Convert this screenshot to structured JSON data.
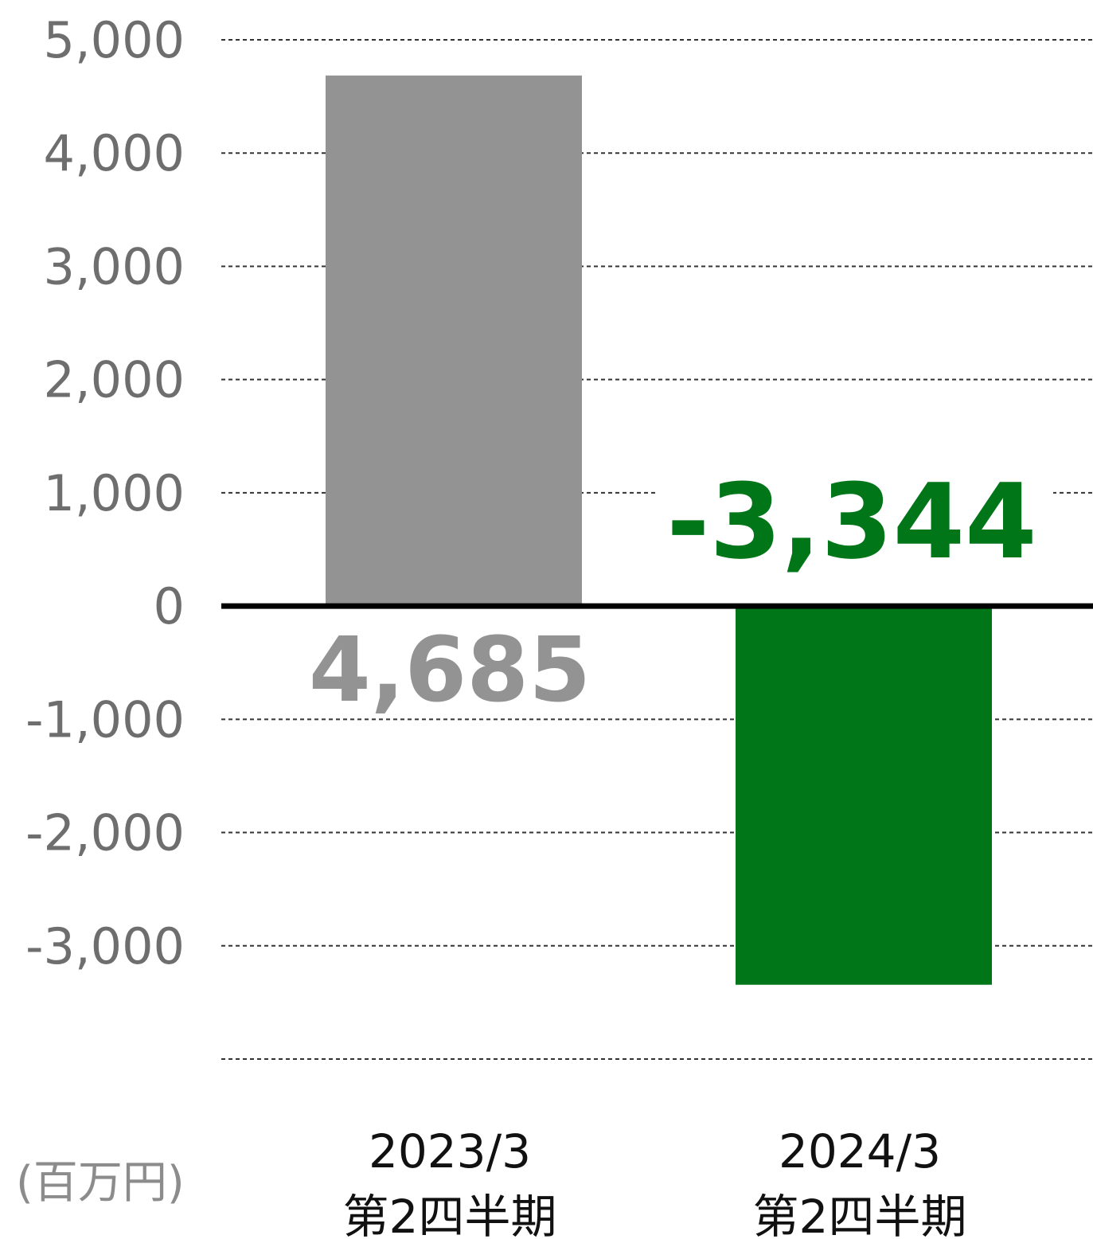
{
  "chart_data": {
    "type": "bar",
    "categories": [
      [
        "2023/3",
        "第2四半期"
      ],
      [
        "2024/3",
        "第2四半期"
      ]
    ],
    "values": [
      4685,
      -3344
    ],
    "data_labels": [
      "4,685",
      "-3,344"
    ],
    "colors": [
      "#939393",
      "#017619"
    ],
    "label_colors": [
      "#939393",
      "#017619"
    ],
    "ylim": [
      -4000,
      5000
    ],
    "y_ticks": [
      {
        "value": 5000,
        "label": "5,000"
      },
      {
        "value": 4000,
        "label": "4,000"
      },
      {
        "value": 3000,
        "label": "3,000"
      },
      {
        "value": 2000,
        "label": "2,000"
      },
      {
        "value": 1000,
        "label": "1,000"
      },
      {
        "value": 0,
        "label": "0"
      },
      {
        "value": -1000,
        "label": "-1,000"
      },
      {
        "value": -2000,
        "label": "-2,000"
      },
      {
        "value": -3000,
        "label": "-3,000"
      }
    ],
    "grid": true,
    "unit_label": "(百万円)"
  }
}
